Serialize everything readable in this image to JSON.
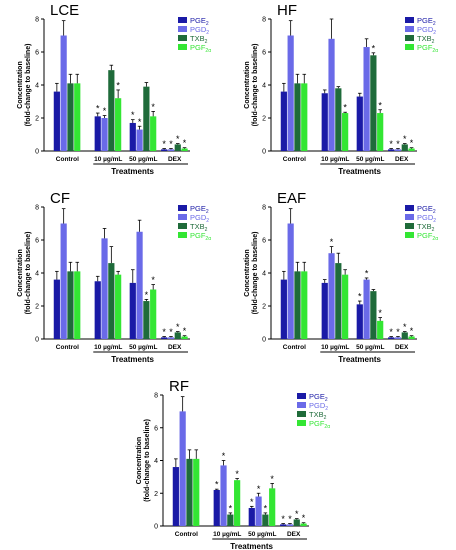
{
  "colors": {
    "PGE2": "#1a1aa6",
    "PGD2": "#6a6ae8",
    "TXB2": "#1f6b3a",
    "PGF2a": "#33e633"
  },
  "chart_data": [
    {
      "type": "bar",
      "title": "LCE",
      "ylabel": [
        "Concentration",
        "(fold-change to baseline)"
      ],
      "xlabel": "Treatments",
      "ylim": [
        0,
        8
      ],
      "yticks": [
        "0",
        "2",
        "4",
        "6",
        "8"
      ],
      "categories": [
        "Control",
        "10 µg/mL",
        "50 µg/mL",
        "DEX"
      ],
      "series": [
        {
          "name": "PGE",
          "sub": "2",
          "key": "PGE2",
          "values": [
            3.6,
            2.1,
            1.7,
            0.1
          ],
          "errors": [
            0.5,
            0.2,
            0.2,
            0.05
          ],
          "stars": [
            false,
            true,
            true,
            true
          ]
        },
        {
          "name": "PGD",
          "sub": "2",
          "key": "PGD2",
          "values": [
            7.0,
            2.0,
            1.3,
            0.1
          ],
          "errors": [
            0.9,
            0.15,
            0.2,
            0.05
          ],
          "stars": [
            false,
            true,
            true,
            true
          ]
        },
        {
          "name": "TXB",
          "sub": "2",
          "key": "TXB2",
          "values": [
            4.1,
            4.9,
            3.9,
            0.4
          ],
          "errors": [
            0.55,
            0.3,
            0.25,
            0.05
          ],
          "stars": [
            false,
            false,
            false,
            true
          ]
        },
        {
          "name": "PGF",
          "sub": "2α",
          "key": "PGF2a",
          "values": [
            4.1,
            3.2,
            2.1,
            0.15
          ],
          "errors": [
            0.55,
            0.5,
            0.3,
            0.05
          ],
          "stars": [
            false,
            true,
            true,
            true
          ]
        }
      ]
    },
    {
      "type": "bar",
      "title": "HF",
      "ylabel": [
        "Concentration",
        "(fold-change to baseline)"
      ],
      "xlabel": "Treatments",
      "ylim": [
        0,
        8
      ],
      "yticks": [
        "0",
        "2",
        "4",
        "6",
        "8"
      ],
      "categories": [
        "Control",
        "10 µg/mL",
        "50 µg/mL",
        "DEX"
      ],
      "series": [
        {
          "name": "PGE",
          "sub": "2",
          "key": "PGE2",
          "values": [
            3.6,
            3.5,
            3.3,
            0.1
          ],
          "errors": [
            0.5,
            0.2,
            0.2,
            0.05
          ],
          "stars": [
            false,
            false,
            false,
            true
          ]
        },
        {
          "name": "PGD",
          "sub": "2",
          "key": "PGD2",
          "values": [
            7.0,
            6.8,
            6.3,
            0.1
          ],
          "errors": [
            0.9,
            1.2,
            0.5,
            0.05
          ],
          "stars": [
            false,
            false,
            false,
            true
          ]
        },
        {
          "name": "TXB",
          "sub": "2",
          "key": "TXB2",
          "values": [
            4.1,
            3.8,
            5.8,
            0.4
          ],
          "errors": [
            0.55,
            0.1,
            0.15,
            0.05
          ],
          "stars": [
            false,
            false,
            true,
            true
          ]
        },
        {
          "name": "PGF",
          "sub": "2α",
          "key": "PGF2a",
          "values": [
            4.1,
            2.3,
            2.3,
            0.15
          ],
          "errors": [
            0.55,
            0.05,
            0.2,
            0.05
          ],
          "stars": [
            false,
            true,
            true,
            true
          ]
        }
      ]
    },
    {
      "type": "bar",
      "title": "CF",
      "ylabel": [
        "Concentration",
        "(fold-change to baseline)"
      ],
      "xlabel": "Treatments",
      "ylim": [
        0,
        8
      ],
      "yticks": [
        "0",
        "2",
        "4",
        "6",
        "8"
      ],
      "categories": [
        "Control",
        "10 µg/mL",
        "50 µg/mL",
        "DEX"
      ],
      "series": [
        {
          "name": "PGE",
          "sub": "2",
          "key": "PGE2",
          "values": [
            3.6,
            3.5,
            3.4,
            0.1
          ],
          "errors": [
            0.5,
            0.3,
            0.8,
            0.05
          ],
          "stars": [
            false,
            false,
            false,
            true
          ]
        },
        {
          "name": "PGD",
          "sub": "2",
          "key": "PGD2",
          "values": [
            7.0,
            6.1,
            6.5,
            0.1
          ],
          "errors": [
            0.9,
            0.6,
            0.7,
            0.05
          ],
          "stars": [
            false,
            false,
            false,
            true
          ]
        },
        {
          "name": "TXB",
          "sub": "2",
          "key": "TXB2",
          "values": [
            4.1,
            4.6,
            2.3,
            0.4
          ],
          "errors": [
            0.55,
            1.0,
            0.1,
            0.05
          ],
          "stars": [
            false,
            false,
            true,
            true
          ]
        },
        {
          "name": "PGF",
          "sub": "2α",
          "key": "PGF2a",
          "values": [
            4.1,
            3.9,
            3.0,
            0.15
          ],
          "errors": [
            0.55,
            0.2,
            0.3,
            0.05
          ],
          "stars": [
            false,
            false,
            true,
            true
          ]
        }
      ]
    },
    {
      "type": "bar",
      "title": "EAF",
      "ylabel": [
        "Concentration",
        "(fold-change to baseline)"
      ],
      "xlabel": "Treatments",
      "ylim": [
        0,
        8
      ],
      "yticks": [
        "0",
        "2",
        "4",
        "6",
        "8"
      ],
      "categories": [
        "Control",
        "10 µg/mL",
        "50 µg/mL",
        "DEX"
      ],
      "series": [
        {
          "name": "PGE",
          "sub": "2",
          "key": "PGE2",
          "values": [
            3.6,
            3.4,
            2.1,
            0.1
          ],
          "errors": [
            0.5,
            0.2,
            0.2,
            0.05
          ],
          "stars": [
            false,
            false,
            true,
            true
          ]
        },
        {
          "name": "PGD",
          "sub": "2",
          "key": "PGD2",
          "values": [
            7.0,
            5.2,
            3.6,
            0.1
          ],
          "errors": [
            0.9,
            0.4,
            0.1,
            0.05
          ],
          "stars": [
            false,
            true,
            true,
            true
          ]
        },
        {
          "name": "TXB",
          "sub": "2",
          "key": "TXB2",
          "values": [
            4.1,
            4.6,
            2.9,
            0.4
          ],
          "errors": [
            0.55,
            0.6,
            0.1,
            0.05
          ],
          "stars": [
            false,
            false,
            false,
            true
          ]
        },
        {
          "name": "PGF",
          "sub": "2α",
          "key": "PGF2a",
          "values": [
            4.1,
            3.9,
            1.1,
            0.15
          ],
          "errors": [
            0.55,
            0.3,
            0.2,
            0.05
          ],
          "stars": [
            false,
            false,
            true,
            true
          ]
        }
      ]
    },
    {
      "type": "bar",
      "title": "RF",
      "ylabel": [
        "Concentration",
        "(fold-change to baseline)"
      ],
      "xlabel": "Treatments",
      "ylim": [
        0,
        8
      ],
      "yticks": [
        "0",
        "2",
        "4",
        "6",
        "8"
      ],
      "categories": [
        "Control",
        "10 µg/mL",
        "50 µg/mL",
        "DEX"
      ],
      "series": [
        {
          "name": "PGE",
          "sub": "2",
          "key": "PGE2",
          "values": [
            3.6,
            2.2,
            1.1,
            0.1
          ],
          "errors": [
            0.5,
            0.05,
            0.1,
            0.05
          ],
          "stars": [
            false,
            true,
            true,
            true
          ]
        },
        {
          "name": "PGD",
          "sub": "2",
          "key": "PGD2",
          "values": [
            7.0,
            3.7,
            1.8,
            0.1
          ],
          "errors": [
            0.9,
            0.3,
            0.2,
            0.05
          ],
          "stars": [
            false,
            true,
            true,
            true
          ]
        },
        {
          "name": "TXB",
          "sub": "2",
          "key": "TXB2",
          "values": [
            4.1,
            0.7,
            0.7,
            0.4
          ],
          "errors": [
            0.55,
            0.1,
            0.1,
            0.05
          ],
          "stars": [
            false,
            true,
            true,
            true
          ]
        },
        {
          "name": "PGF",
          "sub": "2α",
          "key": "PGF2a",
          "values": [
            4.1,
            2.8,
            2.3,
            0.15
          ],
          "errors": [
            0.55,
            0.1,
            0.3,
            0.05
          ],
          "stars": [
            false,
            true,
            true,
            true
          ]
        }
      ]
    }
  ]
}
